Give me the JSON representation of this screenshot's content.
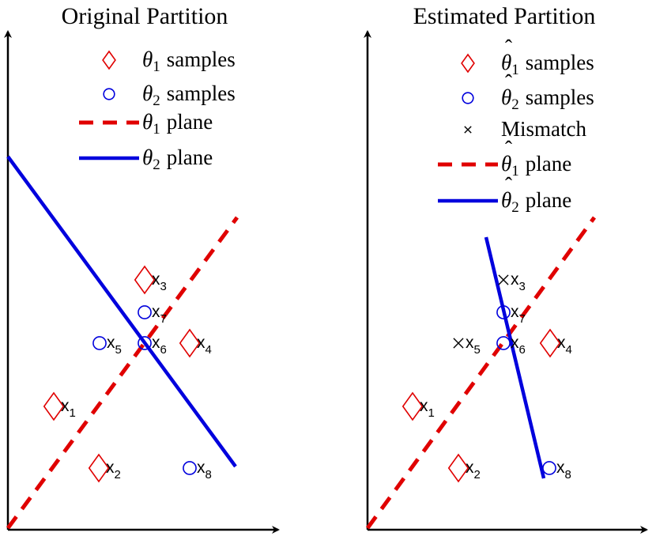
{
  "panels": [
    {
      "title": "Original Partition",
      "legend": [
        {
          "marker": "diamond",
          "color": "#e00000",
          "symbol": "θ",
          "hat": false,
          "sub": "1",
          "text": "samples"
        },
        {
          "marker": "circle",
          "color": "#0000dd",
          "symbol": "θ",
          "hat": false,
          "sub": "2",
          "text": "samples"
        },
        {
          "marker": "dashed-line",
          "color": "#e00000",
          "symbol": "θ",
          "hat": false,
          "sub": "1",
          "text": "plane"
        },
        {
          "marker": "solid-line",
          "color": "#0000dd",
          "symbol": "θ",
          "hat": false,
          "sub": "2",
          "text": "plane"
        }
      ],
      "points": [
        {
          "label": "x",
          "sub": "1",
          "marker": "diamond"
        },
        {
          "label": "x",
          "sub": "2",
          "marker": "diamond"
        },
        {
          "label": "x",
          "sub": "3",
          "marker": "diamond"
        },
        {
          "label": "x",
          "sub": "4",
          "marker": "diamond"
        },
        {
          "label": "x",
          "sub": "5",
          "marker": "circle"
        },
        {
          "label": "x",
          "sub": "6",
          "marker": "circle"
        },
        {
          "label": "x",
          "sub": "7",
          "marker": "circle"
        },
        {
          "label": "x",
          "sub": "8",
          "marker": "circle"
        }
      ]
    },
    {
      "title": "Estimated Partition",
      "legend": [
        {
          "marker": "diamond",
          "color": "#e00000",
          "symbol": "θ",
          "hat": true,
          "sub": "1",
          "text": "samples"
        },
        {
          "marker": "circle",
          "color": "#0000dd",
          "symbol": "θ",
          "hat": true,
          "sub": "2",
          "text": "samples"
        },
        {
          "marker": "cross",
          "color": "#000000",
          "symbol": "",
          "hat": false,
          "sub": "",
          "text": "Mismatch"
        },
        {
          "marker": "dashed-line",
          "color": "#e00000",
          "symbol": "θ",
          "hat": true,
          "sub": "1",
          "text": "plane"
        },
        {
          "marker": "solid-line",
          "color": "#0000dd",
          "symbol": "θ",
          "hat": true,
          "sub": "2",
          "text": "plane"
        }
      ],
      "points": [
        {
          "label": "x",
          "sub": "1",
          "marker": "diamond"
        },
        {
          "label": "x",
          "sub": "2",
          "marker": "diamond"
        },
        {
          "label": "x",
          "sub": "3",
          "marker": "cross"
        },
        {
          "label": "x",
          "sub": "4",
          "marker": "diamond"
        },
        {
          "label": "x",
          "sub": "5",
          "marker": "cross"
        },
        {
          "label": "x",
          "sub": "6",
          "marker": "circle"
        },
        {
          "label": "x",
          "sub": "7",
          "marker": "circle"
        },
        {
          "label": "x",
          "sub": "8",
          "marker": "circle"
        }
      ]
    }
  ],
  "colors": {
    "red": "#e00000",
    "blue": "#0000dd",
    "axis": "#000000"
  }
}
